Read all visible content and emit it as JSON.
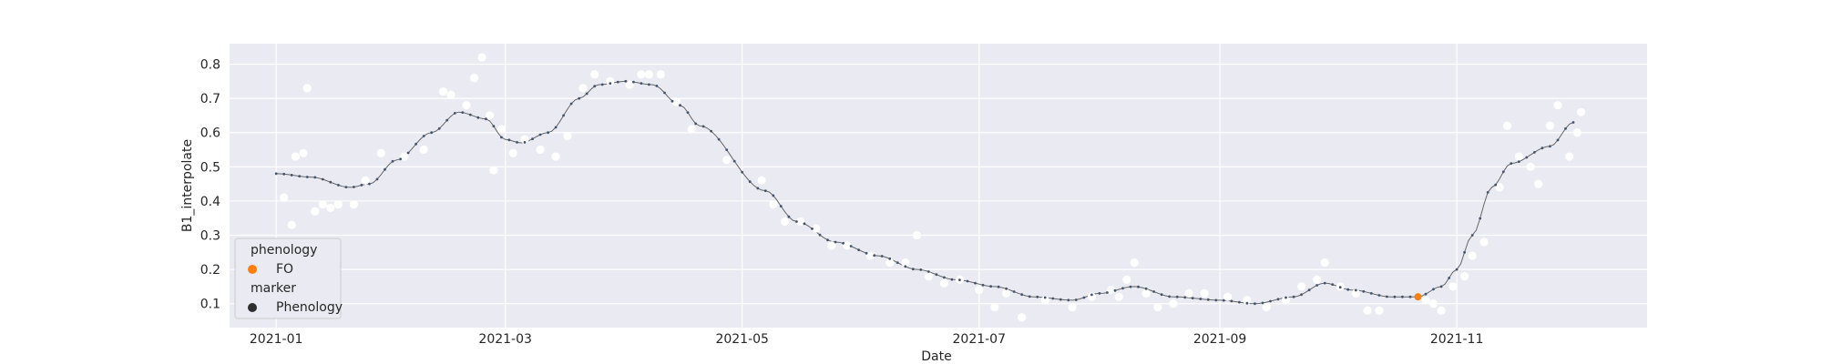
{
  "chart_data": {
    "type": "scatter",
    "xlabel": "Date",
    "ylabel": "B1_interpolate",
    "x_ticks": [
      "2021-01",
      "2021-03",
      "2021-05",
      "2021-07",
      "2021-09",
      "2021-11"
    ],
    "y_ticks": [
      0.1,
      0.2,
      0.3,
      0.4,
      0.5,
      0.6,
      0.7,
      0.8
    ],
    "xlim": [
      "2020-12-20",
      "2021-12-20"
    ],
    "ylim": [
      0.03,
      0.86
    ],
    "grid": true,
    "legend_position": "lower-left",
    "colors": {
      "background": "#eaeaf2",
      "grid": "#ffffff",
      "raw_points": "#ffffff",
      "curve": "#4c72b0",
      "curve_points": "#44546a",
      "phenology_fo": "#ff7f0e",
      "marker_phenology": "#2f2f2f"
    },
    "legend": {
      "phenology_title": "phenology",
      "phenology_item": "FO",
      "marker_title": "marker",
      "marker_item": "Phenology"
    },
    "curve": [
      [
        "2021-01-01",
        0.48
      ],
      [
        "2021-01-10",
        0.47
      ],
      [
        "2021-01-20",
        0.44
      ],
      [
        "2021-01-25",
        0.45
      ],
      [
        "2021-02-01",
        0.52
      ],
      [
        "2021-02-10",
        0.6
      ],
      [
        "2021-02-17",
        0.66
      ],
      [
        "2021-02-24",
        0.64
      ],
      [
        "2021-03-01",
        0.58
      ],
      [
        "2021-03-05",
        0.57
      ],
      [
        "2021-03-12",
        0.6
      ],
      [
        "2021-03-20",
        0.7
      ],
      [
        "2021-03-25",
        0.74
      ],
      [
        "2021-04-01",
        0.75
      ],
      [
        "2021-04-08",
        0.74
      ],
      [
        "2021-04-15",
        0.68
      ],
      [
        "2021-04-20",
        0.62
      ],
      [
        "2021-05-07",
        0.43
      ],
      [
        "2021-05-15",
        0.34
      ],
      [
        "2021-05-25",
        0.28
      ],
      [
        "2021-06-05",
        0.24
      ],
      [
        "2021-06-15",
        0.2
      ],
      [
        "2021-06-25",
        0.17
      ],
      [
        "2021-07-05",
        0.15
      ],
      [
        "2021-07-15",
        0.12
      ],
      [
        "2021-07-25",
        0.11
      ],
      [
        "2021-08-01",
        0.13
      ],
      [
        "2021-08-10",
        0.15
      ],
      [
        "2021-08-20",
        0.12
      ],
      [
        "2021-09-01",
        0.11
      ],
      [
        "2021-09-10",
        0.1
      ],
      [
        "2021-09-20",
        0.12
      ],
      [
        "2021-09-28",
        0.16
      ],
      [
        "2021-10-05",
        0.14
      ],
      [
        "2021-10-15",
        0.12
      ],
      [
        "2021-10-22",
        0.12
      ],
      [
        "2021-10-28",
        0.15
      ],
      [
        "2021-11-01",
        0.2
      ],
      [
        "2021-11-05",
        0.3
      ],
      [
        "2021-11-10",
        0.44
      ],
      [
        "2021-11-15",
        0.51
      ],
      [
        "2021-11-25",
        0.56
      ],
      [
        "2021-12-01",
        0.63
      ]
    ],
    "raw_points": [
      [
        "2021-01-03",
        0.41
      ],
      [
        "2021-01-05",
        0.33
      ],
      [
        "2021-01-06",
        0.53
      ],
      [
        "2021-01-08",
        0.54
      ],
      [
        "2021-01-09",
        0.73
      ],
      [
        "2021-01-11",
        0.37
      ],
      [
        "2021-01-13",
        0.39
      ],
      [
        "2021-01-15",
        0.38
      ],
      [
        "2021-01-17",
        0.39
      ],
      [
        "2021-01-21",
        0.39
      ],
      [
        "2021-01-24",
        0.46
      ],
      [
        "2021-01-28",
        0.54
      ],
      [
        "2021-02-03",
        0.53
      ],
      [
        "2021-02-08",
        0.55
      ],
      [
        "2021-02-13",
        0.72
      ],
      [
        "2021-02-15",
        0.71
      ],
      [
        "2021-02-19",
        0.68
      ],
      [
        "2021-02-21",
        0.76
      ],
      [
        "2021-02-23",
        0.82
      ],
      [
        "2021-02-25",
        0.65
      ],
      [
        "2021-02-26",
        0.49
      ],
      [
        "2021-02-28",
        0.61
      ],
      [
        "2021-03-03",
        0.54
      ],
      [
        "2021-03-06",
        0.58
      ],
      [
        "2021-03-10",
        0.55
      ],
      [
        "2021-03-14",
        0.53
      ],
      [
        "2021-03-17",
        0.59
      ],
      [
        "2021-03-21",
        0.73
      ],
      [
        "2021-03-24",
        0.77
      ],
      [
        "2021-03-28",
        0.75
      ],
      [
        "2021-04-02",
        0.74
      ],
      [
        "2021-04-05",
        0.77
      ],
      [
        "2021-04-07",
        0.77
      ],
      [
        "2021-04-10",
        0.77
      ],
      [
        "2021-04-14",
        0.69
      ],
      [
        "2021-04-18",
        0.61
      ],
      [
        "2021-04-27",
        0.52
      ],
      [
        "2021-05-06",
        0.46
      ],
      [
        "2021-05-09",
        0.39
      ],
      [
        "2021-05-12",
        0.34
      ],
      [
        "2021-05-16",
        0.34
      ],
      [
        "2021-05-20",
        0.32
      ],
      [
        "2021-05-24",
        0.27
      ],
      [
        "2021-05-28",
        0.27
      ],
      [
        "2021-06-03",
        0.24
      ],
      [
        "2021-06-08",
        0.22
      ],
      [
        "2021-06-12",
        0.22
      ],
      [
        "2021-06-15",
        0.3
      ],
      [
        "2021-06-18",
        0.18
      ],
      [
        "2021-06-22",
        0.16
      ],
      [
        "2021-06-26",
        0.17
      ],
      [
        "2021-07-01",
        0.14
      ],
      [
        "2021-07-05",
        0.09
      ],
      [
        "2021-07-08",
        0.13
      ],
      [
        "2021-07-12",
        0.06
      ],
      [
        "2021-07-18",
        0.11
      ],
      [
        "2021-07-25",
        0.09
      ],
      [
        "2021-07-30",
        0.12
      ],
      [
        "2021-08-04",
        0.14
      ],
      [
        "2021-08-06",
        0.12
      ],
      [
        "2021-08-08",
        0.17
      ],
      [
        "2021-08-10",
        0.22
      ],
      [
        "2021-08-13",
        0.13
      ],
      [
        "2021-08-16",
        0.09
      ],
      [
        "2021-08-20",
        0.1
      ],
      [
        "2021-08-24",
        0.13
      ],
      [
        "2021-08-28",
        0.13
      ],
      [
        "2021-09-03",
        0.12
      ],
      [
        "2021-09-08",
        0.11
      ],
      [
        "2021-09-13",
        0.09
      ],
      [
        "2021-09-18",
        0.11
      ],
      [
        "2021-09-22",
        0.15
      ],
      [
        "2021-09-26",
        0.17
      ],
      [
        "2021-09-28",
        0.22
      ],
      [
        "2021-10-02",
        0.15
      ],
      [
        "2021-10-06",
        0.13
      ],
      [
        "2021-10-09",
        0.08
      ],
      [
        "2021-10-12",
        0.08
      ],
      [
        "2021-10-24",
        0.11
      ],
      [
        "2021-10-26",
        0.1
      ],
      [
        "2021-10-28",
        0.08
      ],
      [
        "2021-10-31",
        0.15
      ],
      [
        "2021-11-03",
        0.18
      ],
      [
        "2021-11-05",
        0.24
      ],
      [
        "2021-11-08",
        0.28
      ],
      [
        "2021-11-12",
        0.44
      ],
      [
        "2021-11-14",
        0.62
      ],
      [
        "2021-11-17",
        0.53
      ],
      [
        "2021-11-20",
        0.5
      ],
      [
        "2021-11-22",
        0.45
      ],
      [
        "2021-11-25",
        0.62
      ],
      [
        "2021-11-27",
        0.68
      ],
      [
        "2021-11-30",
        0.53
      ],
      [
        "2021-12-02",
        0.6
      ],
      [
        "2021-12-03",
        0.66
      ]
    ],
    "phenology_point": [
      "2021-10-22",
      0.12
    ]
  }
}
